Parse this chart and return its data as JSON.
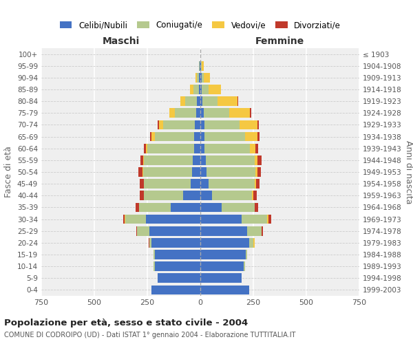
{
  "age_groups": [
    "0-4",
    "5-9",
    "10-14",
    "15-19",
    "20-24",
    "25-29",
    "30-34",
    "35-39",
    "40-44",
    "45-49",
    "50-54",
    "55-59",
    "60-64",
    "65-69",
    "70-74",
    "75-79",
    "80-84",
    "85-89",
    "90-94",
    "95-99",
    "100+"
  ],
  "birth_years": [
    "1999-2003",
    "1994-1998",
    "1989-1993",
    "1984-1988",
    "1979-1983",
    "1974-1978",
    "1969-1973",
    "1964-1968",
    "1959-1963",
    "1954-1958",
    "1949-1953",
    "1944-1948",
    "1939-1943",
    "1934-1938",
    "1929-1933",
    "1924-1928",
    "1919-1923",
    "1914-1918",
    "1909-1913",
    "1904-1908",
    "≤ 1903"
  ],
  "male": {
    "celibi": [
      230,
      200,
      215,
      215,
      230,
      240,
      255,
      140,
      80,
      45,
      40,
      35,
      30,
      30,
      25,
      20,
      15,
      8,
      5,
      2,
      0
    ],
    "coniugati": [
      0,
      0,
      5,
      5,
      10,
      60,
      100,
      150,
      185,
      220,
      230,
      230,
      220,
      185,
      150,
      100,
      55,
      25,
      10,
      3,
      0
    ],
    "vedovi": [
      0,
      0,
      0,
      0,
      0,
      0,
      2,
      0,
      0,
      2,
      2,
      3,
      5,
      15,
      20,
      25,
      25,
      15,
      8,
      2,
      0
    ],
    "divorziati": [
      0,
      0,
      0,
      0,
      2,
      2,
      8,
      15,
      20,
      20,
      20,
      15,
      10,
      8,
      5,
      2,
      0,
      0,
      0,
      0,
      0
    ]
  },
  "female": {
    "nubili": [
      230,
      195,
      205,
      215,
      230,
      220,
      195,
      100,
      55,
      40,
      30,
      25,
      20,
      20,
      20,
      15,
      10,
      8,
      5,
      2,
      0
    ],
    "coniugate": [
      0,
      0,
      5,
      5,
      20,
      70,
      120,
      155,
      190,
      215,
      230,
      230,
      215,
      190,
      165,
      120,
      70,
      30,
      12,
      3,
      0
    ],
    "vedove": [
      0,
      0,
      0,
      0,
      5,
      0,
      5,
      2,
      5,
      8,
      10,
      15,
      25,
      60,
      85,
      100,
      95,
      60,
      30,
      10,
      0
    ],
    "divorziate": [
      0,
      0,
      0,
      0,
      0,
      5,
      15,
      15,
      15,
      15,
      15,
      18,
      12,
      8,
      5,
      5,
      2,
      0,
      0,
      0,
      0
    ]
  },
  "colors": {
    "celibi": "#4472C4",
    "coniugati": "#b5c98e",
    "vedovi": "#f5c842",
    "divorziati": "#c0392b"
  },
  "title": "Popolazione per età, sesso e stato civile - 2004",
  "subtitle": "COMUNE DI CODROIPO (UD) - Dati ISTAT 1° gennaio 2004 - Elaborazione TUTTITALIA.IT",
  "xlabel_left": "Maschi",
  "xlabel_right": "Femmine",
  "ylabel_left": "Fasce di età",
  "ylabel_right": "Anni di nascita",
  "xlim": 750,
  "legend_labels": [
    "Celibi/Nubili",
    "Coniugati/e",
    "Vedovi/e",
    "Divorziati/e"
  ],
  "background_color": "#ffffff",
  "plot_bg_color": "#efefef"
}
